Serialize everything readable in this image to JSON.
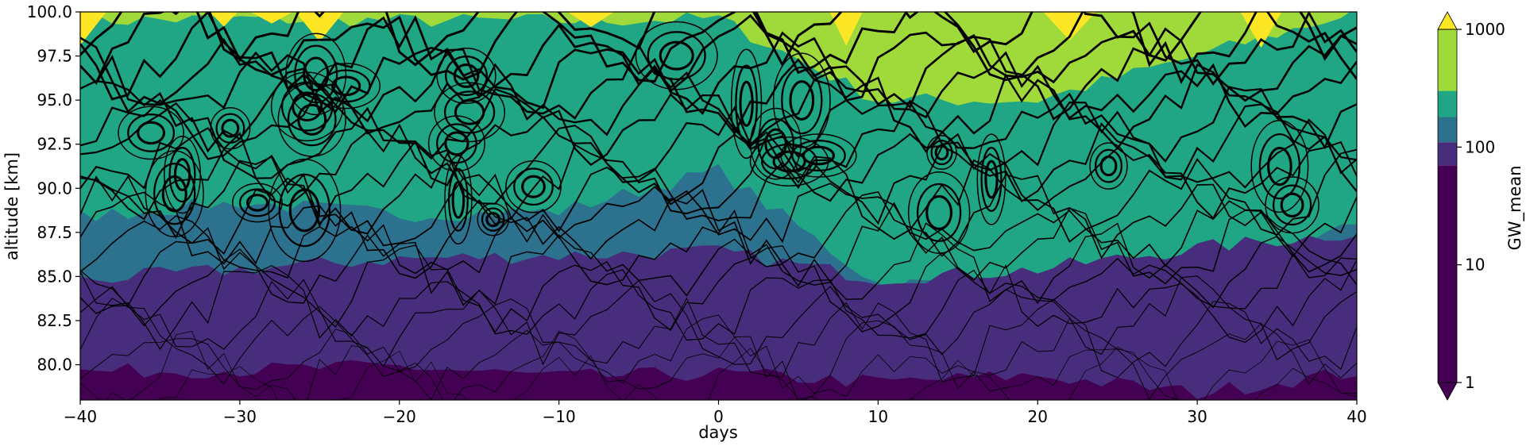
{
  "chart_data": {
    "type": "contour",
    "xlabel": "days",
    "ylabel": "altitude [km]",
    "xlim": [
      -40,
      40
    ],
    "ylim": [
      78,
      100
    ],
    "x_ticks": [
      "−40",
      "−30",
      "−20",
      "−10",
      "0",
      "10",
      "20",
      "30",
      "40"
    ],
    "x_tick_values": [
      -40,
      -30,
      -20,
      -10,
      0,
      10,
      20,
      30,
      40
    ],
    "y_ticks": [
      "80.0",
      "82.5",
      "85.0",
      "87.5",
      "90.0",
      "92.5",
      "95.0",
      "97.5",
      "100.0"
    ],
    "y_tick_values": [
      80,
      82.5,
      85,
      87.5,
      90,
      92.5,
      95,
      97.5,
      100
    ],
    "grid": false,
    "colorbar": {
      "label": "GW_mean",
      "scale": "log",
      "tick_labels": [
        "1",
        "10",
        "100",
        "1000"
      ],
      "tick_values": [
        1,
        10,
        100,
        1000
      ],
      "levels": [
        1,
        70,
        110,
        180,
        300,
        1000
      ],
      "colors": [
        "#440154",
        "#472d7b",
        "#2c728e",
        "#21a685",
        "#9fda3a",
        "#fde725"
      ],
      "extend": "both"
    },
    "filled_bands_km": [
      {
        "color": "#440154",
        "boundary_alt": [
          79.6,
          79.7,
          79.9,
          79.3,
          79.5,
          79.0,
          79.4,
          78.4,
          79.6
        ]
      },
      {
        "color": "#472d7b",
        "boundary_alt": [
          84.8,
          85.4,
          86.0,
          86.2,
          86.4,
          84.9,
          85.4,
          86.6,
          87.5
        ]
      },
      {
        "color": "#2c728e",
        "boundary_alt": [
          88.4,
          89.2,
          88.5,
          88.7,
          91.0,
          84.6,
          84.6,
          84.5,
          88.1
        ]
      },
      {
        "color": "#21a685",
        "boundary_alt": [
          99.5,
          99.6,
          99.5,
          99.5,
          99.6,
          95.0,
          95.0,
          97.5,
          100.0
        ]
      },
      {
        "color": "#9fda3a",
        "boundary_alt": [
          100,
          100,
          100,
          100,
          100,
          100,
          100,
          100,
          100
        ]
      }
    ],
    "yellow_patches_days": [
      -40,
      -31,
      -28,
      -25,
      -8,
      8,
      22,
      34
    ]
  }
}
